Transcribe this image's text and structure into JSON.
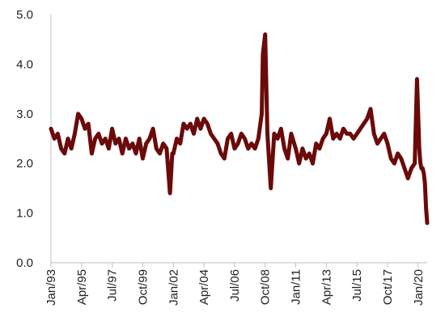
{
  "chart_data": {
    "type": "line",
    "title": "",
    "xlabel": "",
    "ylabel": "",
    "ylim": [
      0,
      5
    ],
    "grid": false,
    "legend": "none",
    "line_color": "#6b0a0a",
    "y_ticks": [
      "0.0",
      "1.0",
      "2.0",
      "3.0",
      "4.0",
      "5.0"
    ],
    "x_ticks": [
      "Jan/93",
      "Apr/95",
      "Jul/97",
      "Oct/99",
      "Jan/02",
      "Apr/04",
      "Jul/06",
      "Oct/08",
      "Jan/11",
      "Apr/13",
      "Jul/15",
      "Oct/17",
      "Jan/20"
    ],
    "x_tick_values": [
      "1993-01",
      "1995-04",
      "1997-07",
      "1999-10",
      "2002-01",
      "2004-04",
      "2006-07",
      "2008-10",
      "2011-01",
      "2013-04",
      "2015-07",
      "2017-10",
      "2020-01"
    ],
    "x_range": [
      "1993-01",
      "2020-09"
    ],
    "series": [
      {
        "x": [
          "1993-01",
          "1993-04",
          "1993-07",
          "1993-10",
          "1994-01",
          "1994-04",
          "1994-07",
          "1994-10",
          "1995-01",
          "1995-04",
          "1995-07",
          "1995-10",
          "1996-01",
          "1996-04",
          "1996-07",
          "1996-10",
          "1997-01",
          "1997-04",
          "1997-07",
          "1997-10",
          "1998-01",
          "1998-04",
          "1998-07",
          "1998-10",
          "1999-01",
          "1999-04",
          "1999-07",
          "1999-10",
          "2000-01",
          "2000-04",
          "2000-07",
          "2000-10",
          "2001-01",
          "2001-04",
          "2001-07",
          "2001-10",
          "2001-12",
          "2002-01",
          "2002-04",
          "2002-07",
          "2002-10",
          "2003-01",
          "2003-04",
          "2003-07",
          "2003-10",
          "2004-01",
          "2004-04",
          "2004-07",
          "2004-10",
          "2005-01",
          "2005-04",
          "2005-07",
          "2005-10",
          "2006-01",
          "2006-04",
          "2006-07",
          "2006-10",
          "2007-01",
          "2007-04",
          "2007-07",
          "2007-10",
          "2008-01",
          "2008-04",
          "2008-07",
          "2008-08",
          "2008-10",
          "2008-12",
          "2009-03",
          "2009-06",
          "2009-09",
          "2009-12",
          "2010-03",
          "2010-06",
          "2010-09",
          "2011-01",
          "2011-04",
          "2011-07",
          "2011-10",
          "2012-01",
          "2012-04",
          "2012-07",
          "2012-10",
          "2013-01",
          "2013-04",
          "2013-07",
          "2013-10",
          "2014-01",
          "2014-04",
          "2014-07",
          "2014-10",
          "2015-01",
          "2015-04",
          "2015-07",
          "2015-10",
          "2016-01",
          "2016-04",
          "2016-07",
          "2016-10",
          "2017-01",
          "2017-04",
          "2017-07",
          "2017-10",
          "2018-01",
          "2018-04",
          "2018-07",
          "2018-10",
          "2019-01",
          "2019-04",
          "2019-07",
          "2019-10",
          "2019-12",
          "2020-02",
          "2020-03",
          "2020-04",
          "2020-05",
          "2020-06",
          "2020-07",
          "2020-08",
          "2020-09"
        ],
        "values": [
          2.7,
          2.5,
          2.6,
          2.3,
          2.2,
          2.5,
          2.3,
          2.6,
          3.0,
          2.9,
          2.7,
          2.8,
          2.2,
          2.5,
          2.6,
          2.4,
          2.5,
          2.3,
          2.7,
          2.4,
          2.5,
          2.2,
          2.5,
          2.3,
          2.4,
          2.2,
          2.5,
          2.1,
          2.4,
          2.5,
          2.7,
          2.3,
          2.2,
          2.4,
          2.3,
          1.4,
          2.2,
          2.2,
          2.5,
          2.4,
          2.8,
          2.7,
          2.8,
          2.6,
          2.9,
          2.7,
          2.9,
          2.8,
          2.6,
          2.5,
          2.4,
          2.2,
          2.1,
          2.5,
          2.6,
          2.3,
          2.4,
          2.6,
          2.5,
          2.3,
          2.4,
          2.3,
          2.5,
          3.0,
          4.2,
          4.6,
          2.6,
          1.5,
          2.6,
          2.5,
          2.7,
          2.3,
          2.1,
          2.6,
          2.3,
          2.0,
          2.3,
          2.1,
          2.2,
          2.0,
          2.4,
          2.3,
          2.5,
          2.6,
          2.9,
          2.5,
          2.6,
          2.5,
          2.7,
          2.6,
          2.6,
          2.5,
          2.6,
          2.7,
          2.8,
          2.9,
          3.1,
          2.6,
          2.4,
          2.5,
          2.6,
          2.4,
          2.1,
          2.0,
          2.2,
          2.1,
          1.9,
          1.7,
          1.9,
          2.0,
          3.7,
          2.3,
          2.0,
          1.9,
          1.9,
          1.8,
          1.6,
          1.1,
          0.8
        ]
      }
    ]
  }
}
